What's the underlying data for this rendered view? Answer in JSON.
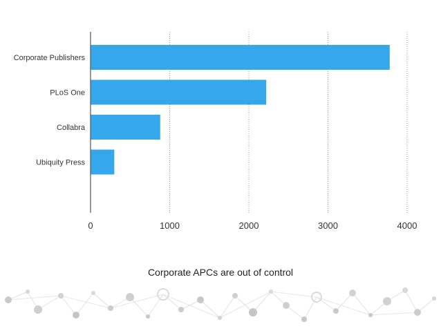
{
  "chart_data": {
    "type": "bar",
    "orientation": "horizontal",
    "categories": [
      "Corporate Publishers",
      "PLoS One",
      "Collabra",
      "Ubiquity Press"
    ],
    "values": [
      3780,
      2220,
      880,
      300
    ],
    "xlim": [
      0,
      4000
    ],
    "xticks": [
      0,
      1000,
      2000,
      3000,
      4000
    ],
    "grid": "vertical dotted",
    "bar_color": "#35a8ec"
  },
  "caption": "Corporate APCs are out of control",
  "footer_decoration": "network-pattern"
}
